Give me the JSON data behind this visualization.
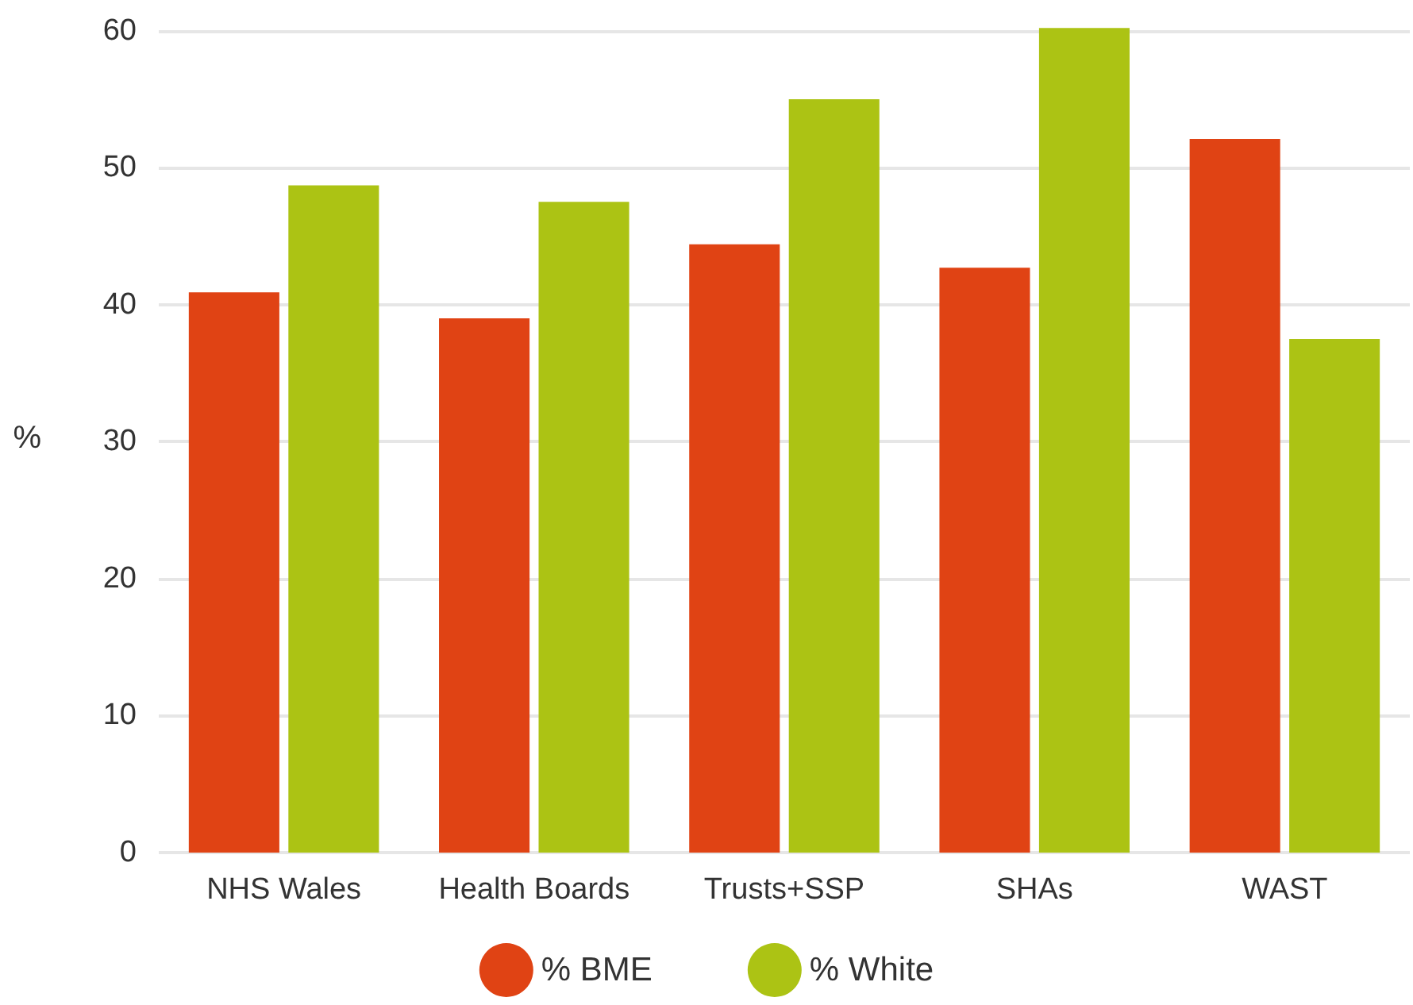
{
  "chart_data": {
    "type": "bar",
    "ylabel": "%",
    "categories": [
      "NHS Wales",
      "Health Boards",
      "Trusts+SSP",
      "SHAs",
      "WAST"
    ],
    "series": [
      {
        "name": "% BME",
        "color": "#e04314",
        "values": [
          40.9,
          39.0,
          44.4,
          42.7,
          52.1
        ]
      },
      {
        "name": "% White",
        "color": "#acc314",
        "values": [
          48.7,
          47.5,
          55.0,
          60.2,
          37.5
        ]
      }
    ],
    "ylim": [
      0,
      60.5
    ],
    "yticks": [
      0,
      10,
      20,
      30,
      40,
      50,
      60
    ],
    "grid": "y",
    "legend": "bottom"
  }
}
